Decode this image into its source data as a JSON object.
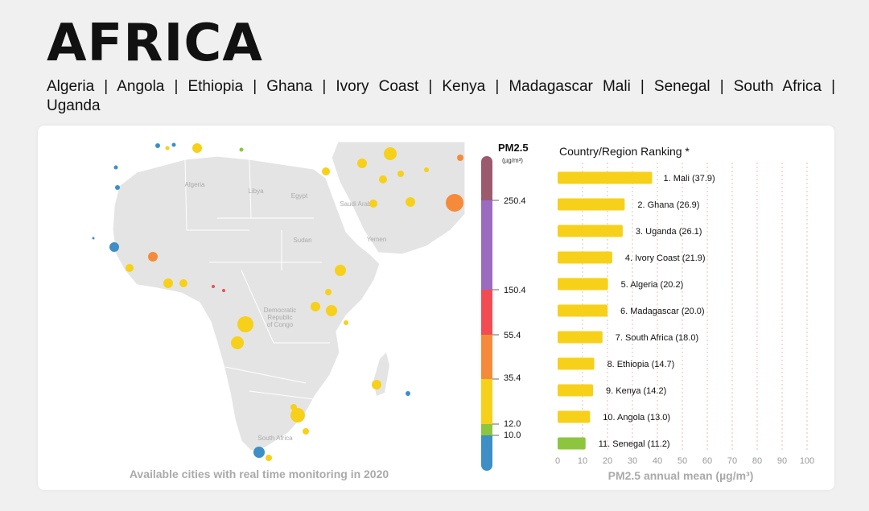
{
  "header": {
    "title": "AFRICA",
    "countries": [
      "Algeria",
      "Angola",
      "Ethiopia",
      "Ghana",
      "Ivory Coast",
      "Kenya",
      "Madagascar",
      "Mali",
      "Senegal",
      "South Africa",
      "Uganda"
    ],
    "separator": "|"
  },
  "map": {
    "caption": "Available cities with real time monitoring in 2020",
    "labels": [
      "Algeria",
      "Libya",
      "Egypt",
      "Sudan",
      "Democratic Republic of Congo",
      "South Africa",
      "Saudi Arabia",
      "Yemen"
    ]
  },
  "scale": {
    "title": "PM2.5",
    "unit": "(µg/m³)",
    "ticks": [
      "250.4",
      "150.4",
      "55.4",
      "35.4",
      "12.0",
      "10.0"
    ],
    "colors": {
      "hazardous": "#9b5a6e",
      "very_unhealthy": "#9b6bbf",
      "unhealthy": "#f24c52",
      "unhealthy_sensitive": "#f58b3a",
      "moderate": "#f7d01a",
      "good": "#8cc63f",
      "good_low": "#3d8fc6"
    }
  },
  "chart_data": {
    "type": "bar",
    "orientation": "horizontal",
    "title": "Country/Region Ranking *",
    "xlabel": "PM2.5 annual mean (µg/m³)",
    "xlim": [
      0,
      100
    ],
    "xticks": [
      0,
      10,
      20,
      30,
      40,
      50,
      60,
      70,
      80,
      90,
      100
    ],
    "categories": [
      "Mali",
      "Ghana",
      "Uganda",
      "Ivory Coast",
      "Algeria",
      "Madagascar",
      "South Africa",
      "Ethiopia",
      "Kenya",
      "Angola",
      "Senegal"
    ],
    "labels": [
      "1. Mali (37.9)",
      "2. Ghana (26.9)",
      "3. Uganda (26.1)",
      "4. Ivory Coast (21.9)",
      "5. Algeria (20.2)",
      "6. Madagascar (20.0)",
      "7. South Africa (18.0)",
      "8. Ethiopia (14.7)",
      "9. Kenya (14.2)",
      "10. Angola (13.0)",
      "11. Senegal (11.2)"
    ],
    "values": [
      37.9,
      26.9,
      26.1,
      21.9,
      20.2,
      20.0,
      18.0,
      14.7,
      14.2,
      13.0,
      11.2
    ],
    "colors": [
      "#f7d01a",
      "#f7d01a",
      "#f7d01a",
      "#f7d01a",
      "#f7d01a",
      "#f7d01a",
      "#f7d01a",
      "#f7d01a",
      "#f7d01a",
      "#f7d01a",
      "#8cc63f"
    ],
    "grid": "vertical dashed"
  }
}
